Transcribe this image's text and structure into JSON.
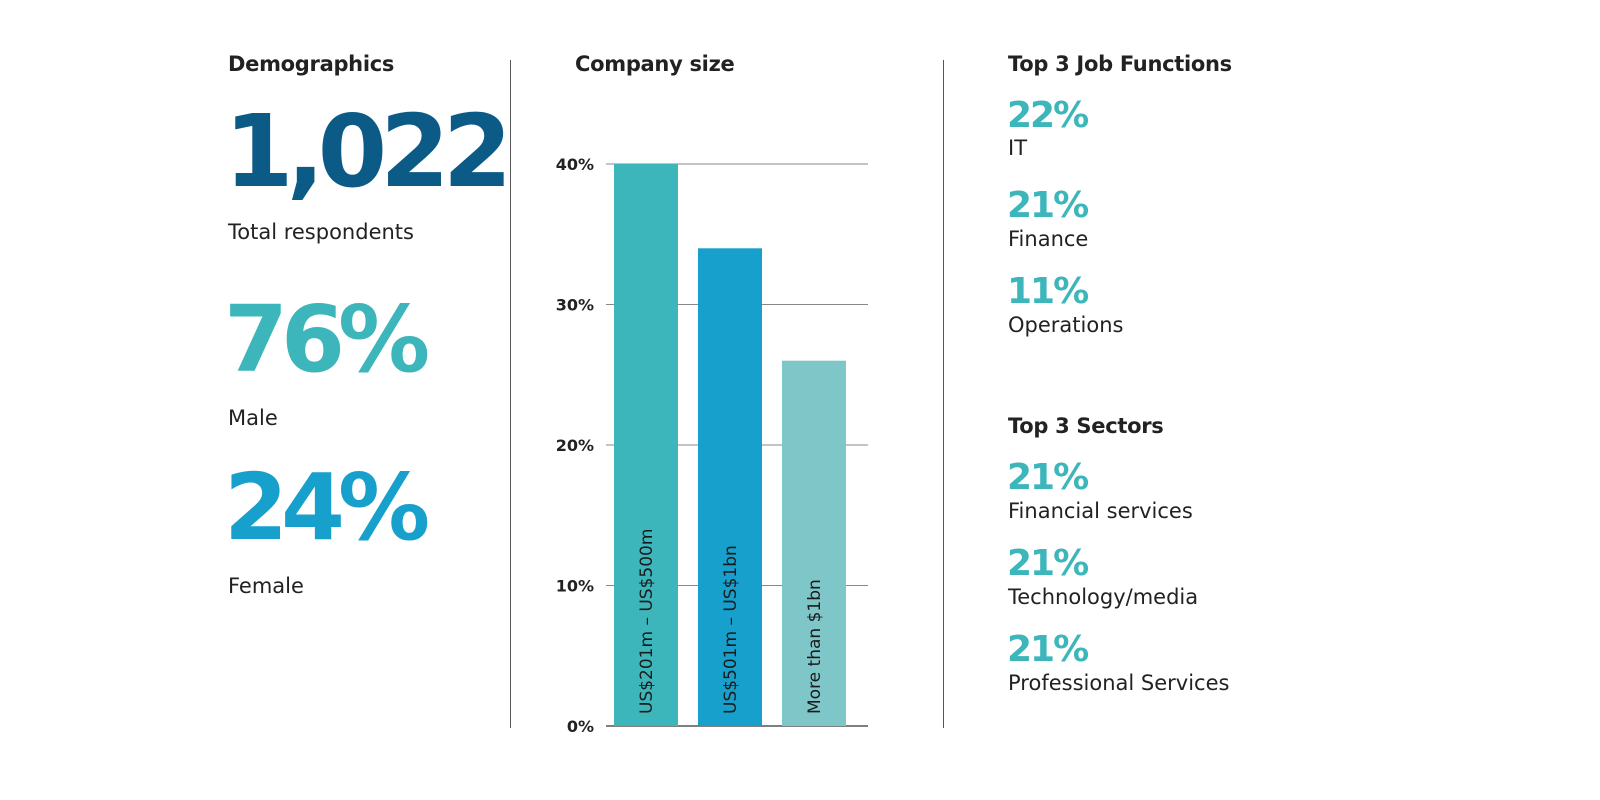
{
  "demographics": {
    "title": "Demographics",
    "total_value": "1,022",
    "total_label": "Total respondents",
    "male_value": "76%",
    "male_label": "Male",
    "female_value": "24%",
    "female_label": "Female"
  },
  "colors": {
    "navy": "#0c5a86",
    "teal": "#3cb6bb",
    "blue": "#18a0cc",
    "light_teal": "#7fc6c8"
  },
  "chart_data": {
    "type": "bar",
    "title": "Company size",
    "categories": [
      "US$201m – US$500m",
      "US$501m – US$1bn",
      "More than $1bn"
    ],
    "values": [
      40,
      34,
      26
    ],
    "colors": [
      "#3cb6bb",
      "#18a0cc",
      "#7fc6c8"
    ],
    "ylim": [
      0,
      40
    ],
    "yticks": [
      0,
      10,
      20,
      30,
      40
    ],
    "ytick_labels": [
      "0%",
      "10%",
      "20%",
      "30%",
      "40%"
    ],
    "grid": true
  },
  "job_functions": {
    "title": "Top 3 Job Functions",
    "items": [
      {
        "pct": "22%",
        "label": "IT"
      },
      {
        "pct": "21%",
        "label": "Finance"
      },
      {
        "pct": "11%",
        "label": "Operations"
      }
    ]
  },
  "sectors": {
    "title": "Top 3 Sectors",
    "items": [
      {
        "pct": "21%",
        "label": "Financial services"
      },
      {
        "pct": "21%",
        "label": "Technology/media"
      },
      {
        "pct": "21%",
        "label": "Professional Services"
      }
    ]
  }
}
